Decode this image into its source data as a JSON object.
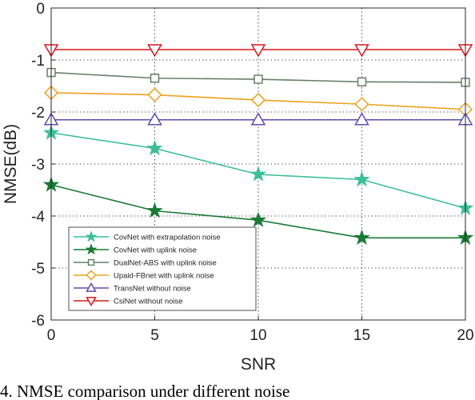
{
  "chart_data": {
    "type": "line",
    "xlabel": "SNR",
    "ylabel": "NMSE(dB)",
    "x": [
      0,
      5,
      10,
      15,
      20
    ],
    "xlim": [
      0,
      20
    ],
    "ylim": [
      -6,
      0
    ],
    "xticks": [
      0,
      5,
      10,
      15,
      20
    ],
    "yticks": [
      0,
      -1,
      -2,
      -3,
      -4,
      -5,
      -6
    ],
    "grid": "dotted",
    "legend_position": "bottom-left",
    "series": [
      {
        "name": "CovNet with extrapolation noise",
        "values": [
          -2.4,
          -2.7,
          -3.2,
          -3.3,
          -3.85
        ],
        "color": "#3cbf99",
        "marker": "star"
      },
      {
        "name": "CovNet with uplink noise",
        "values": [
          -3.4,
          -3.9,
          -4.08,
          -4.42,
          -4.42
        ],
        "color": "#1a7a35",
        "marker": "star"
      },
      {
        "name": "DualNet-ABS with uplink noise",
        "values": [
          -1.24,
          -1.35,
          -1.37,
          -1.42,
          -1.43
        ],
        "color": "#66806a",
        "marker": "square"
      },
      {
        "name": "Upaid-FBnet with uplink noise",
        "values": [
          -1.63,
          -1.67,
          -1.77,
          -1.85,
          -1.95
        ],
        "color": "#eba21d",
        "marker": "diamond"
      },
      {
        "name": "TransNet without noise",
        "values": [
          -2.15,
          -2.15,
          -2.15,
          -2.15,
          -2.15
        ],
        "color": "#5b4dae",
        "marker": "triangle-up"
      },
      {
        "name": "CsiNet without noise",
        "values": [
          -0.8,
          -0.8,
          -0.8,
          -0.8,
          -0.8
        ],
        "color": "#d7191c",
        "marker": "triangle-down"
      }
    ]
  },
  "caption": "4. NMSE comparison under different noise"
}
